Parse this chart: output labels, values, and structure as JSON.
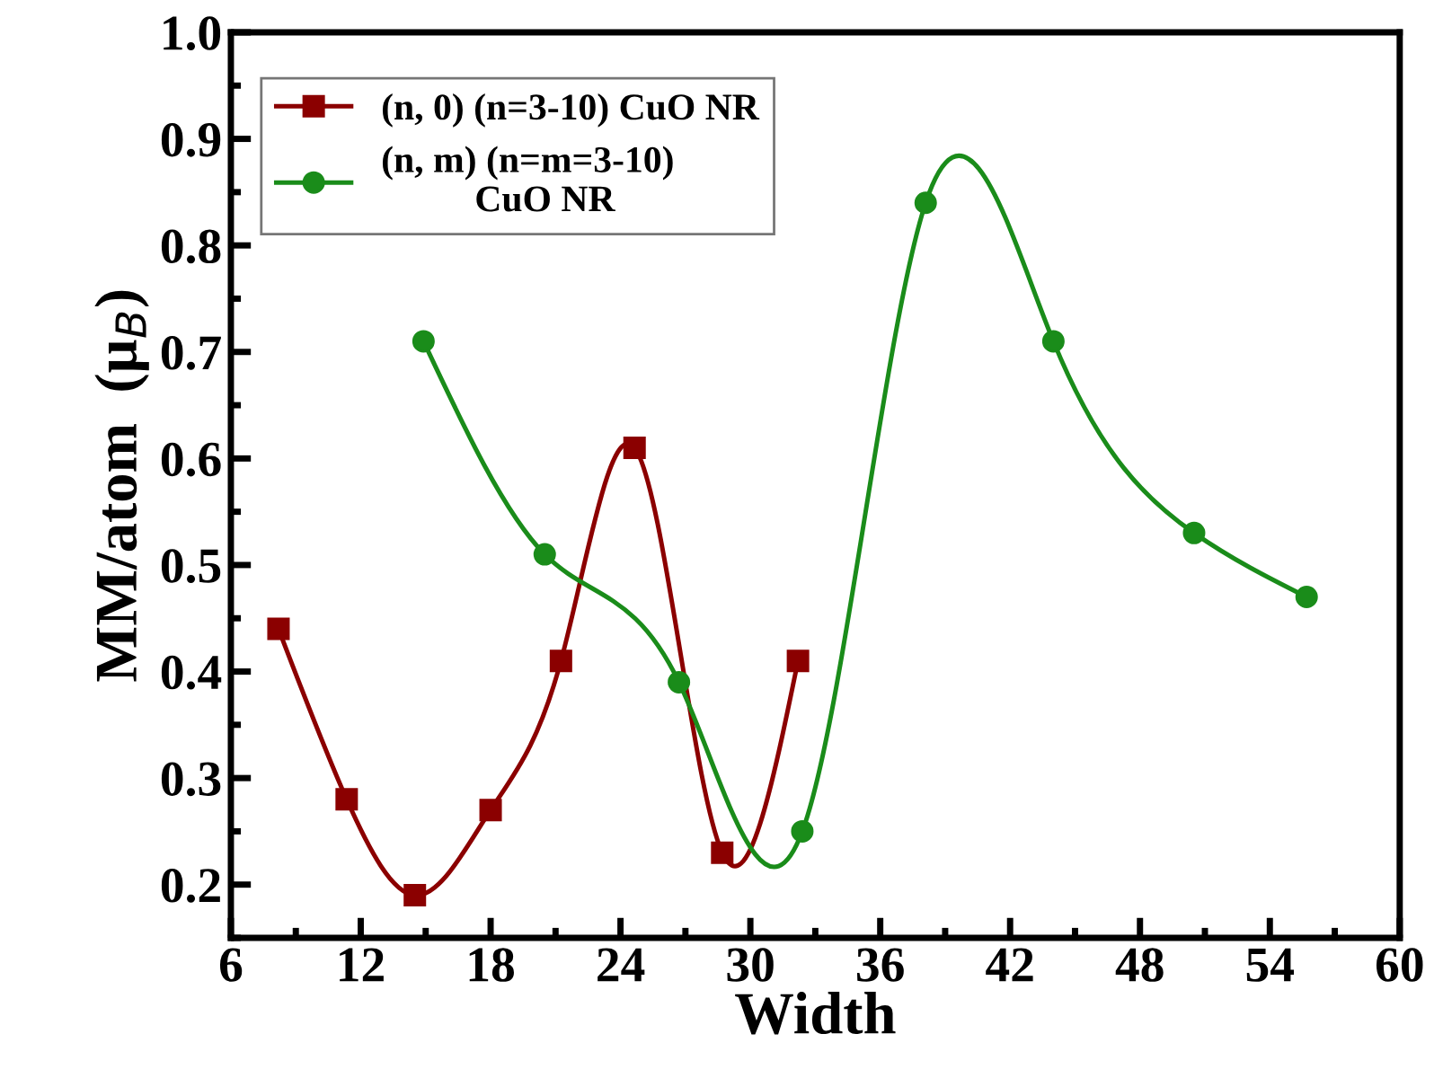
{
  "chart_data": {
    "type": "line",
    "xlabel": "Width",
    "ylabel": "MM/atom  (μ$_{B}$)",
    "xlim": [
      6,
      60
    ],
    "xticks": [
      6,
      12,
      18,
      24,
      30,
      36,
      42,
      48,
      54,
      60
    ],
    "ylim": [
      0.15,
      1.0
    ],
    "yticks": [
      0.2,
      0.3,
      0.4,
      0.5,
      0.6,
      0.7,
      0.8,
      0.9,
      {
        "value": 1,
        "label": "1.0"
      }
    ],
    "grid": false,
    "legend": "top left",
    "line_style": "solid",
    "series": [
      {
        "name": "(n, 0) (n=3-10) CuO NR",
        "color": "#8b0000",
        "marker": "square",
        "x": [
          8.2,
          11.35,
          14.5,
          18.0,
          21.25,
          24.65,
          28.7,
          32.2
        ],
        "values": [
          0.44,
          0.28,
          0.19,
          0.27,
          0.41,
          0.61,
          0.23,
          0.41
        ]
      },
      {
        "name": "(n, m) (n=m=3-10)\n          CuO NR",
        "color": "#1a8c1a",
        "marker": "circle",
        "x": [
          14.9,
          20.5,
          26.7,
          32.4,
          38.1,
          44.0,
          50.5,
          55.7
        ],
        "values": [
          0.71,
          0.51,
          0.39,
          0.25,
          0.84,
          0.71,
          0.53,
          0.47
        ]
      }
    ]
  }
}
